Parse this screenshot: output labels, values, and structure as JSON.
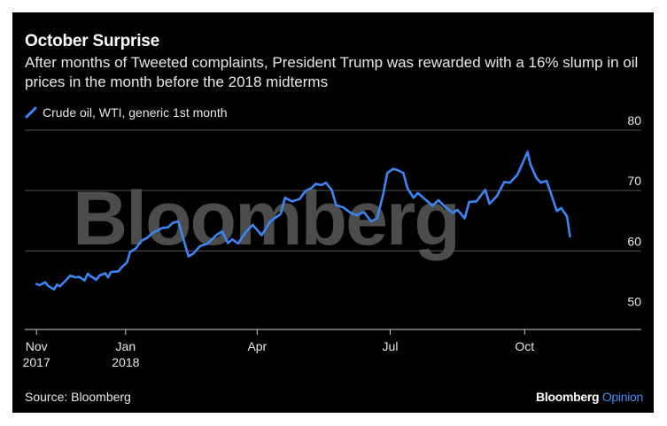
{
  "title": "October Surprise",
  "subtitle": "After months of Tweeted complaints, President Trump was rewarded with a 16% slump in oil prices in the month before the 2018 midterms",
  "watermark": "Bloomberg",
  "source": "Source: Bloomberg",
  "brand": {
    "name": "Bloomberg",
    "suffix": "Opinion"
  },
  "colors": {
    "background": "#000000",
    "line": "#3d86f5",
    "grid": "#4a4a4a",
    "watermark": "#5a5a5a"
  },
  "chart_data": {
    "type": "line",
    "title": "October Surprise",
    "xlabel": "",
    "ylabel": "",
    "ylim": [
      48,
      80
    ],
    "yticks": [
      50,
      60,
      70,
      80
    ],
    "grid": true,
    "legend_position": "top-left",
    "x_tick_labels": [
      {
        "date": "2017-11-01",
        "label": "Nov\n2017"
      },
      {
        "date": "2018-01-01",
        "label": "Jan\n2018"
      },
      {
        "date": "2018-04-01",
        "label": "Apr"
      },
      {
        "date": "2018-07-01",
        "label": "Jul"
      },
      {
        "date": "2018-10-01",
        "label": "Oct"
      }
    ],
    "xlim": [
      "2017-10-24",
      "2018-11-28"
    ],
    "series": [
      {
        "name": "Crude oil, WTI, generic 1st month",
        "x": [
          "2017-11-01",
          "2017-11-03",
          "2017-11-07",
          "2017-11-09",
          "2017-11-13",
          "2017-11-15",
          "2017-11-17",
          "2017-11-21",
          "2017-11-24",
          "2017-11-28",
          "2017-11-30",
          "2017-12-04",
          "2017-12-06",
          "2017-12-08",
          "2017-12-12",
          "2017-12-14",
          "2017-12-18",
          "2017-12-20",
          "2017-12-22",
          "2017-12-27",
          "2017-12-29",
          "2018-01-02",
          "2018-01-04",
          "2018-01-08",
          "2018-01-10",
          "2018-01-12",
          "2018-01-16",
          "2018-01-19",
          "2018-01-23",
          "2018-01-26",
          "2018-01-30",
          "2018-02-02",
          "2018-02-06",
          "2018-02-09",
          "2018-02-13",
          "2018-02-16",
          "2018-02-21",
          "2018-02-26",
          "2018-03-01",
          "2018-03-05",
          "2018-03-08",
          "2018-03-12",
          "2018-03-15",
          "2018-03-19",
          "2018-03-22",
          "2018-03-26",
          "2018-03-29",
          "2018-04-04",
          "2018-04-06",
          "2018-04-10",
          "2018-04-13",
          "2018-04-17",
          "2018-04-20",
          "2018-04-25",
          "2018-04-30",
          "2018-05-04",
          "2018-05-08",
          "2018-05-11",
          "2018-05-15",
          "2018-05-18",
          "2018-05-22",
          "2018-05-25",
          "2018-05-30",
          "2018-06-04",
          "2018-06-08",
          "2018-06-13",
          "2018-06-18",
          "2018-06-22",
          "2018-06-26",
          "2018-06-29",
          "2018-07-03",
          "2018-07-06",
          "2018-07-10",
          "2018-07-13",
          "2018-07-17",
          "2018-07-20",
          "2018-07-25",
          "2018-07-30",
          "2018-08-03",
          "2018-08-08",
          "2018-08-13",
          "2018-08-16",
          "2018-08-21",
          "2018-08-24",
          "2018-08-29",
          "2018-09-04",
          "2018-09-07",
          "2018-09-12",
          "2018-09-17",
          "2018-09-21",
          "2018-09-26",
          "2018-10-01",
          "2018-10-03",
          "2018-10-05",
          "2018-10-09",
          "2018-10-12",
          "2018-10-16",
          "2018-10-19",
          "2018-10-23",
          "2018-10-26",
          "2018-10-30",
          "2018-11-01"
        ],
        "values": [
          54.5,
          54.3,
          54.8,
          54.2,
          53.6,
          54.4,
          54.1,
          55.1,
          55.9,
          55.6,
          55.7,
          55.1,
          56.2,
          55.8,
          55.2,
          55.9,
          56.3,
          55.6,
          56.5,
          56.6,
          57.2,
          58.1,
          59.8,
          60.4,
          61.1,
          61.7,
          62.2,
          62.9,
          63.4,
          63.8,
          63.9,
          64.6,
          64.9,
          62.4,
          59.1,
          59.5,
          60.8,
          61.2,
          61.9,
          62.8,
          63.2,
          61.3,
          61.9,
          61.2,
          62.4,
          63.6,
          64.3,
          62.6,
          63.3,
          64.9,
          65.4,
          66.1,
          68.8,
          68.2,
          68.6,
          69.9,
          70.4,
          71.1,
          70.9,
          71.3,
          70.1,
          67.6,
          67.2,
          66.3,
          65.9,
          66.4,
          64.9,
          65.4,
          69.2,
          72.9,
          73.6,
          73.4,
          72.9,
          70.3,
          68.8,
          69.6,
          68.5,
          67.5,
          68.4,
          67.2,
          66.3,
          66.8,
          65.4,
          68.1,
          68.2,
          70.1,
          67.8,
          69.1,
          71.4,
          71.3,
          72.6,
          75.3,
          76.4,
          74.3,
          72.1,
          71.3,
          71.6,
          69.5,
          66.6,
          67.1,
          65.7,
          62.4
        ]
      }
    ]
  }
}
